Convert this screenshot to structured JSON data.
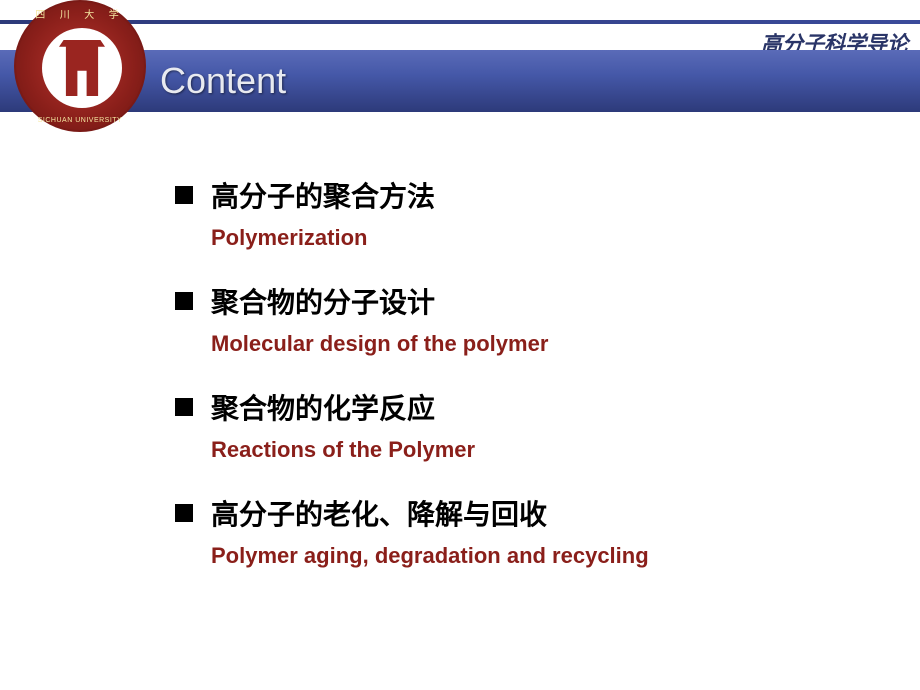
{
  "course_name": "高分子科学导论",
  "logo": {
    "top_text": "四 川 大 学",
    "bottom_text": "SICHUAN UNIVERSITY",
    "primary_color": "#8a1f1a",
    "accent_color": "#f5e6a0",
    "inner_bg": "#ffffff"
  },
  "header": {
    "title": "Content",
    "bar_gradient_top": "#5a6bb8",
    "bar_gradient_bottom": "#2d3a7a",
    "title_color": "#e8eaf0",
    "title_fontsize": 36
  },
  "styling": {
    "background": "#ffffff",
    "bullet_color": "#000000",
    "bullet_size": 18,
    "title_zh_color": "#000000",
    "title_zh_fontsize": 28,
    "subtitle_en_color": "#8a1f1a",
    "subtitle_en_fontsize": 22,
    "course_name_color": "#2a3568",
    "course_name_fontsize": 21
  },
  "items": [
    {
      "zh": "高分子的聚合方法",
      "en": "Polymerization"
    },
    {
      "zh": "聚合物的分子设计",
      "en": "Molecular design of the polymer"
    },
    {
      "zh": "聚合物的化学反应",
      "en": "Reactions of the Polymer"
    },
    {
      "zh": "高分子的老化、降解与回收",
      "en": "Polymer aging, degradation and recycling"
    }
  ]
}
